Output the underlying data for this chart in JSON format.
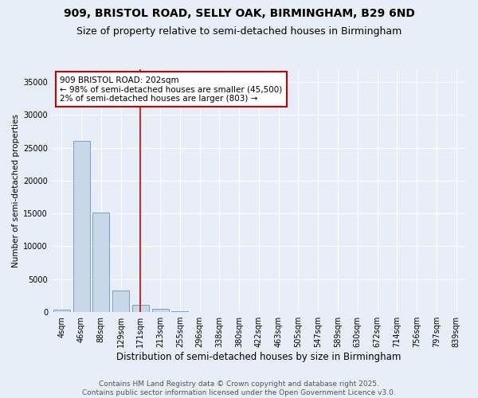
{
  "title1": "909, BRISTOL ROAD, SELLY OAK, BIRMINGHAM, B29 6ND",
  "title2": "Size of property relative to semi-detached houses in Birmingham",
  "xlabel": "Distribution of semi-detached houses by size in Birmingham",
  "ylabel": "Number of semi-detached properties",
  "categories": [
    "4sqm",
    "46sqm",
    "88sqm",
    "129sqm",
    "171sqm",
    "213sqm",
    "255sqm",
    "296sqm",
    "338sqm",
    "380sqm",
    "422sqm",
    "463sqm",
    "505sqm",
    "547sqm",
    "589sqm",
    "630sqm",
    "672sqm",
    "714sqm",
    "756sqm",
    "797sqm",
    "839sqm"
  ],
  "values": [
    400,
    26100,
    15100,
    3300,
    1100,
    450,
    130,
    40,
    10,
    5,
    2,
    1,
    0,
    0,
    0,
    0,
    0,
    0,
    0,
    0,
    0
  ],
  "bar_color": "#c8d8e8",
  "bar_edge_color": "#7aa0c0",
  "vline_color": "#cc0000",
  "vline_index": 4.5,
  "annotation_text": "909 BRISTOL ROAD: 202sqm\n← 98% of semi-detached houses are smaller (45,500)\n2% of semi-detached houses are larger (803) →",
  "annotation_box_facecolor": "white",
  "annotation_box_edgecolor": "#cc0000",
  "ylim": [
    0,
    37000
  ],
  "yticks": [
    0,
    5000,
    10000,
    15000,
    20000,
    25000,
    30000,
    35000
  ],
  "background_color": "#e8eef8",
  "plot_bg_color": "#e8eef8",
  "grid_color": "white",
  "footer_text": "Contains HM Land Registry data © Crown copyright and database right 2025.\nContains public sector information licensed under the Open Government Licence v3.0.",
  "title1_fontsize": 10,
  "title2_fontsize": 9,
  "xlabel_fontsize": 8.5,
  "ylabel_fontsize": 7.5,
  "tick_fontsize": 7,
  "annotation_fontsize": 7.5,
  "footer_fontsize": 6.5
}
